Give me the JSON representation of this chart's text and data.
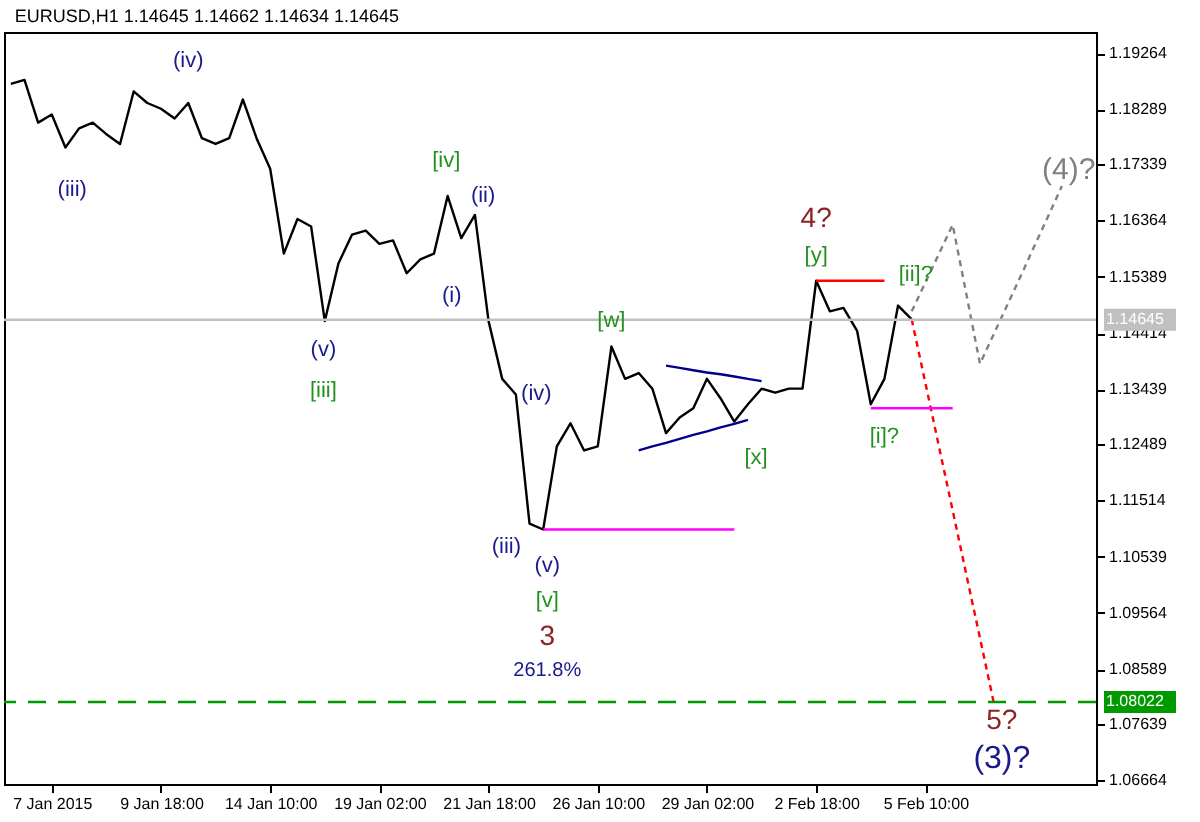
{
  "chart_data": {
    "type": "line",
    "title": "EURUSD,H1  1.14645 1.14662 1.14634 1.14645",
    "categories": [
      null,
      null,
      null,
      "7 Jan 2015",
      null,
      null,
      null,
      null,
      null,
      null,
      null,
      "9 Jan 18:00",
      null,
      null,
      null,
      null,
      null,
      null,
      null,
      "14 Jan 10:00",
      null,
      null,
      null,
      null,
      null,
      null,
      null,
      "19 Jan 02:00",
      null,
      null,
      null,
      null,
      null,
      null,
      null,
      "21 Jan 18:00",
      null,
      null,
      null,
      null,
      null,
      null,
      null,
      "26 Jan 10:00",
      null,
      null,
      null,
      null,
      null,
      null,
      null,
      "29 Jan 02:00",
      null,
      null,
      null,
      null,
      null,
      null,
      null,
      "2 Feb 18:00",
      null,
      null,
      null,
      null,
      null,
      null,
      null,
      "5 Feb 10:00",
      null,
      null,
      null,
      null,
      null,
      null,
      null,
      null,
      null,
      null,
      null,
      null
    ],
    "ylim": [
      1.066,
      1.1963
    ],
    "yticks": [
      1.06664,
      1.07639,
      1.08589,
      1.09564,
      1.10539,
      1.11514,
      1.12489,
      1.13439,
      1.14414,
      1.15389,
      1.16364,
      1.17339,
      1.18289,
      1.19264
    ],
    "series": [
      {
        "color": "#000000",
        "values": [
          1.1873,
          1.188,
          1.1806,
          1.182,
          1.1763,
          1.1796,
          1.1806,
          1.1786,
          1.1769,
          1.186,
          1.184,
          1.183,
          1.1813,
          1.184,
          1.1779,
          1.1769,
          1.1779,
          1.1846,
          1.1779,
          1.1726,
          1.1579,
          1.1639,
          1.1626,
          1.1462,
          1.1562,
          1.1612,
          1.1619,
          1.1596,
          1.1602,
          1.1545,
          1.1569,
          1.1579,
          1.1679,
          1.1606,
          1.1646,
          1.1462,
          1.1362,
          1.1335,
          1.1111,
          1.1101,
          1.1245,
          1.1285,
          1.1238,
          1.1245,
          1.1418,
          1.1362,
          1.1372,
          1.1345,
          1.1268,
          1.1295,
          1.1311,
          1.1362,
          1.1328,
          1.1288,
          1.1318,
          1.1345,
          1.1338,
          1.1345,
          1.1345,
          1.1532,
          1.1479,
          1.1485,
          1.1445,
          1.1318,
          1.1362,
          1.1489,
          1.1465,
          null,
          null,
          null,
          null,
          null,
          null,
          null,
          null,
          null,
          null,
          null,
          null,
          null
        ]
      },
      {
        "color": "#ff0000",
        "line_style": "dotted",
        "values": [
          null,
          null,
          null,
          null,
          null,
          null,
          null,
          null,
          null,
          null,
          null,
          null,
          null,
          null,
          null,
          null,
          null,
          null,
          null,
          null,
          null,
          null,
          null,
          null,
          null,
          null,
          null,
          null,
          null,
          null,
          null,
          null,
          null,
          null,
          null,
          null,
          null,
          null,
          null,
          null,
          null,
          null,
          null,
          null,
          null,
          null,
          null,
          null,
          null,
          null,
          null,
          null,
          null,
          null,
          null,
          null,
          null,
          null,
          null,
          null,
          null,
          null,
          null,
          null,
          null,
          null,
          1.1465,
          1.1355,
          1.1244,
          1.1134,
          1.1023,
          1.0913,
          1.0802,
          null,
          null,
          null,
          null,
          null,
          null,
          null
        ]
      },
      {
        "color": "#808080",
        "line_style": "dotted",
        "values": [
          null,
          null,
          null,
          null,
          null,
          null,
          null,
          null,
          null,
          null,
          null,
          null,
          null,
          null,
          null,
          null,
          null,
          null,
          null,
          null,
          null,
          null,
          null,
          null,
          null,
          null,
          null,
          null,
          null,
          null,
          null,
          null,
          null,
          null,
          null,
          null,
          null,
          null,
          null,
          null,
          null,
          null,
          null,
          null,
          null,
          null,
          null,
          null,
          null,
          null,
          null,
          null,
          null,
          null,
          null,
          null,
          null,
          null,
          null,
          null,
          null,
          null,
          null,
          null,
          null,
          null,
          1.1479,
          1.1529,
          1.1579,
          1.1629,
          1.1509,
          1.1388,
          1.1439,
          1.149,
          1.1541,
          1.1593,
          1.1644,
          1.1696,
          null,
          null
        ]
      },
      {
        "color": "#ff0000",
        "values": [
          null,
          null,
          null,
          null,
          null,
          null,
          null,
          null,
          null,
          null,
          null,
          null,
          null,
          null,
          null,
          null,
          null,
          null,
          null,
          null,
          null,
          null,
          null,
          null,
          null,
          null,
          null,
          null,
          null,
          null,
          null,
          null,
          null,
          null,
          null,
          null,
          null,
          null,
          null,
          null,
          null,
          null,
          null,
          null,
          null,
          null,
          null,
          null,
          null,
          null,
          null,
          null,
          null,
          null,
          null,
          null,
          null,
          null,
          null,
          1.1532,
          1.1532,
          1.1532,
          1.1532,
          1.1532,
          1.1532,
          null,
          null,
          null,
          null,
          null,
          null,
          null,
          null,
          null,
          null,
          null,
          null,
          null,
          null,
          null
        ]
      },
      {
        "color": "#ff00ff",
        "values": [
          null,
          null,
          null,
          null,
          null,
          null,
          null,
          null,
          null,
          null,
          null,
          null,
          null,
          null,
          null,
          null,
          null,
          null,
          null,
          null,
          null,
          null,
          null,
          null,
          null,
          null,
          null,
          null,
          null,
          null,
          null,
          null,
          null,
          null,
          null,
          null,
          null,
          null,
          null,
          1.1101,
          1.1101,
          1.1101,
          1.1101,
          1.1101,
          1.1101,
          1.1101,
          1.1101,
          1.1101,
          1.1101,
          1.1101,
          1.1101,
          1.1101,
          1.1101,
          1.1101,
          null,
          null,
          null,
          null,
          null,
          null,
          null,
          null,
          null,
          null,
          null,
          null,
          null,
          null,
          null,
          null,
          null,
          null,
          null,
          null,
          null,
          null,
          null,
          null,
          null,
          null
        ]
      },
      {
        "color": "#ff00ff",
        "values": [
          null,
          null,
          null,
          null,
          null,
          null,
          null,
          null,
          null,
          null,
          null,
          null,
          null,
          null,
          null,
          null,
          null,
          null,
          null,
          null,
          null,
          null,
          null,
          null,
          null,
          null,
          null,
          null,
          null,
          null,
          null,
          null,
          null,
          null,
          null,
          null,
          null,
          null,
          null,
          null,
          null,
          null,
          null,
          null,
          null,
          null,
          null,
          null,
          null,
          null,
          null,
          null,
          null,
          null,
          null,
          null,
          null,
          null,
          null,
          null,
          null,
          null,
          null,
          1.1311,
          1.1311,
          1.1311,
          1.1311,
          1.1311,
          1.1311,
          1.1311,
          null,
          null,
          null,
          null,
          null,
          null,
          null,
          null,
          null,
          null
        ]
      },
      {
        "color": "#00008b",
        "values": [
          null,
          null,
          null,
          null,
          null,
          null,
          null,
          null,
          null,
          null,
          null,
          null,
          null,
          null,
          null,
          null,
          null,
          null,
          null,
          null,
          null,
          null,
          null,
          null,
          null,
          null,
          null,
          null,
          null,
          null,
          null,
          null,
          null,
          null,
          null,
          null,
          null,
          null,
          null,
          null,
          null,
          null,
          null,
          null,
          null,
          null,
          null,
          null,
          1.1385,
          1.1381,
          1.1377,
          1.1373,
          1.137,
          1.1366,
          1.1362,
          1.1358,
          null,
          null,
          null,
          null,
          null,
          null,
          null,
          null,
          null,
          null,
          null,
          null,
          null,
          null,
          null,
          null,
          null,
          null,
          null,
          null,
          null,
          null,
          null,
          null
        ]
      },
      {
        "color": "#00008b",
        "values": [
          null,
          null,
          null,
          null,
          null,
          null,
          null,
          null,
          null,
          null,
          null,
          null,
          null,
          null,
          null,
          null,
          null,
          null,
          null,
          null,
          null,
          null,
          null,
          null,
          null,
          null,
          null,
          null,
          null,
          null,
          null,
          null,
          null,
          null,
          null,
          null,
          null,
          null,
          null,
          null,
          null,
          null,
          null,
          null,
          null,
          null,
          1.1238,
          1.1245,
          1.1251,
          1.1258,
          1.1265,
          1.1271,
          1.1278,
          1.1284,
          1.1291,
          null,
          null,
          null,
          null,
          null,
          null,
          null,
          null,
          null,
          null,
          null,
          null,
          null,
          null,
          null,
          null,
          null,
          null,
          null,
          null,
          null,
          null,
          null,
          null,
          null
        ]
      }
    ],
    "ref_lines": [
      {
        "axis": "y",
        "value": 1.14645,
        "label": "1.14645",
        "color": "#c0c0c0",
        "line_style": "solid"
      },
      {
        "axis": "y",
        "value": 1.08022,
        "label": "1.08022",
        "color": "#009900",
        "line_style": "dashed"
      }
    ],
    "annotations": [
      "(iv)",
      "(iii)",
      "[iv]",
      "(ii)",
      "(i)",
      "(v)",
      "[iii]",
      "(iv)",
      "(iii)",
      "(v)",
      "[v]",
      "3",
      "261.8%",
      "[w]",
      "[x]",
      "4?",
      "[y]",
      "[ii]?",
      "[i]?",
      "(4)?",
      "5?",
      "(3)?"
    ]
  }
}
